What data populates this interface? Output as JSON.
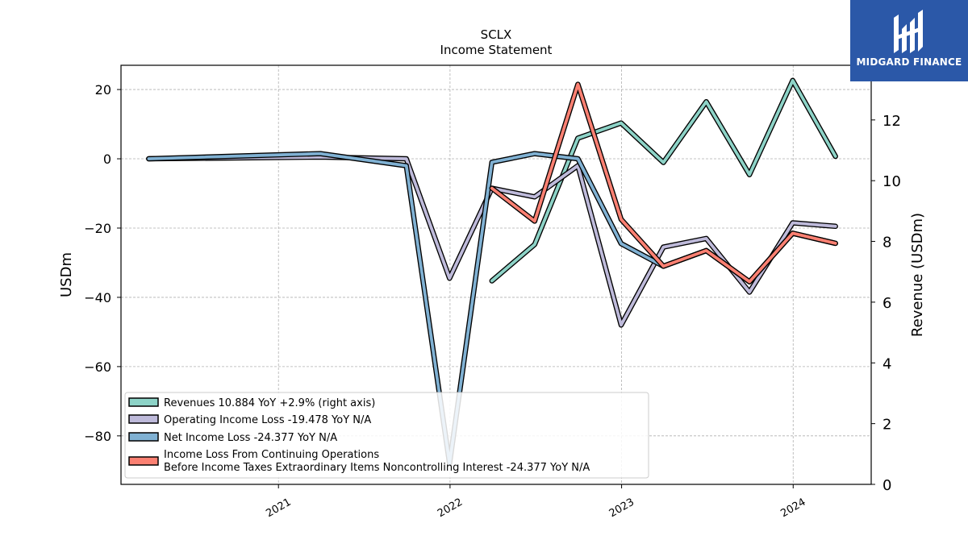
{
  "logo": {
    "text": "MIDGARD FINANCE",
    "icon": "midgard-logo-icon",
    "background": "#2b58a8"
  },
  "chart_data": {
    "type": "line",
    "title": "SCLX",
    "subtitle": "Income Statement",
    "ylabel": "USDm",
    "ylabel_right": "Revenue (USDm)",
    "ylim": [
      -94,
      27
    ],
    "ylim_right": [
      0,
      13.8
    ],
    "xlim": [
      "2020-02-01",
      "2024-06-15"
    ],
    "x_ticks": [
      {
        "date": "2021-01-01",
        "label": "2021"
      },
      {
        "date": "2022-01-01",
        "label": "2022"
      },
      {
        "date": "2023-01-01",
        "label": "2023"
      },
      {
        "date": "2024-01-01",
        "label": "2024"
      }
    ],
    "y_ticks": [
      "20",
      "0",
      "−20",
      "−40",
      "−60",
      "−80"
    ],
    "y_tick_values": [
      20,
      0,
      -20,
      -40,
      -60,
      -80
    ],
    "y_ticks_right": [
      "0",
      "2",
      "4",
      "6",
      "8",
      "10",
      "12"
    ],
    "y_tick_values_right": [
      0,
      2,
      4,
      6,
      8,
      10,
      12
    ],
    "grid": true,
    "legend_position": "lower-left",
    "series": [
      {
        "name": "Revenues",
        "legend_label": "Revenues  10.884 YoY +2.9% (right axis)",
        "axis": "right",
        "color": "#8dd3c7",
        "points": [
          [
            "2022-03-31",
            6.7
          ],
          [
            "2022-06-30",
            7.9
          ],
          [
            "2022-09-30",
            11.4
          ],
          [
            "2022-12-31",
            11.9
          ],
          [
            "2023-03-31",
            10.6
          ],
          [
            "2023-06-30",
            12.6
          ],
          [
            "2023-09-30",
            10.2
          ],
          [
            "2023-12-31",
            13.3
          ],
          [
            "2024-03-31",
            10.8
          ]
        ]
      },
      {
        "name": "Operating Income Loss",
        "legend_label": "Operating Income Loss  -19.478 YoY N/A",
        "axis": "left",
        "color": "#bebada",
        "points": [
          [
            "2020-03-31",
            0.0
          ],
          [
            "2021-03-31",
            0.5
          ],
          [
            "2021-09-30",
            0.0
          ],
          [
            "2021-12-31",
            -34.5
          ],
          [
            "2022-03-31",
            -8.5
          ],
          [
            "2022-06-30",
            -11.0
          ],
          [
            "2022-09-30",
            -2.0
          ],
          [
            "2022-12-31",
            -48.0
          ],
          [
            "2023-03-31",
            -25.5
          ],
          [
            "2023-06-30",
            -23.0
          ],
          [
            "2023-09-30",
            -38.5
          ],
          [
            "2023-12-31",
            -18.5
          ],
          [
            "2024-03-31",
            -19.5
          ]
        ]
      },
      {
        "name": "Net Income Loss",
        "legend_label": "Net Income Loss  -24.377 YoY N/A",
        "axis": "left",
        "color": "#80b1d3",
        "points": [
          [
            "2020-03-31",
            0.0
          ],
          [
            "2021-03-31",
            1.5
          ],
          [
            "2021-09-30",
            -2.0
          ],
          [
            "2021-12-31",
            -88.0
          ],
          [
            "2022-03-31",
            -1.0
          ],
          [
            "2022-06-30",
            1.5
          ],
          [
            "2022-09-30",
            0.0
          ],
          [
            "2022-12-31",
            -24.5
          ],
          [
            "2023-03-31",
            -31.0
          ],
          [
            "2023-06-30",
            -26.5
          ],
          [
            "2023-09-30",
            -35.5
          ],
          [
            "2023-12-31",
            -21.5
          ],
          [
            "2024-03-31",
            -24.4
          ]
        ]
      },
      {
        "name": "Income Loss From Continuing Operations Before Income Taxes Extraordinary Items Noncontrolling Interest",
        "legend_label": "Income Loss From Continuing Operations",
        "legend_label_2": "Before Income Taxes Extraordinary Items Noncontrolling Interest  -24.377 YoY N/A",
        "axis": "left",
        "color": "#fb8072",
        "points": [
          [
            "2022-03-31",
            -8.5
          ],
          [
            "2022-06-30",
            -18.0
          ],
          [
            "2022-09-30",
            21.5
          ],
          [
            "2022-12-31",
            -17.5
          ],
          [
            "2023-03-31",
            -31.0
          ],
          [
            "2023-06-30",
            -26.5
          ],
          [
            "2023-09-30",
            -35.5
          ],
          [
            "2023-12-31",
            -21.5
          ],
          [
            "2024-03-31",
            -24.4
          ]
        ]
      }
    ]
  }
}
